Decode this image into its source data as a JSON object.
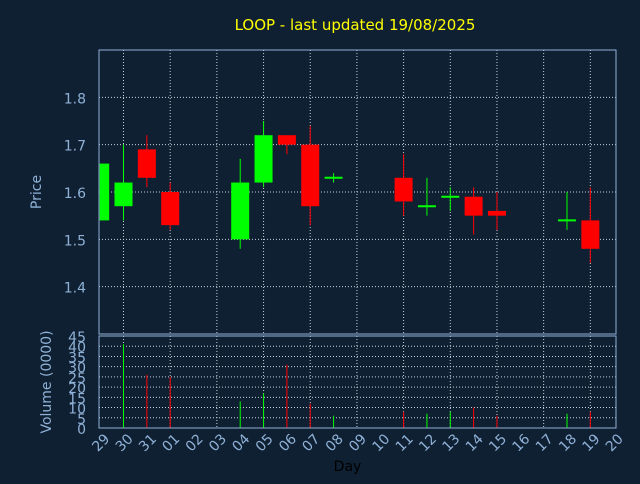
{
  "chart_data": {
    "type": "candlestick",
    "title": "LOOP - last updated 19/08/2025",
    "price_panel": {
      "ylabel": "Price",
      "ylim": [
        1.3,
        1.9
      ],
      "yticks": [
        1.4,
        1.5,
        1.6,
        1.7,
        1.8
      ],
      "ytick_labels": [
        "1.4",
        "1.5",
        "1.6",
        "1.7",
        "1.8"
      ],
      "grid": true
    },
    "volume_panel": {
      "ylabel": "Volume (0000)",
      "ylim": [
        0,
        45
      ],
      "yticks": [
        0,
        5,
        10,
        15,
        20,
        25,
        30,
        35,
        40,
        45
      ],
      "ytick_labels": [
        "0",
        "5",
        "10",
        "15",
        "20",
        "25",
        "30",
        "35",
        "40",
        "45"
      ],
      "grid": true
    },
    "xlabel": "Day",
    "x_labels": [
      "29",
      "30",
      "31",
      "01",
      "02",
      "03",
      "04",
      "05",
      "06",
      "07",
      "08",
      "09",
      "10",
      "11",
      "12",
      "13",
      "14",
      "15",
      "16",
      "17",
      "18",
      "19",
      "20"
    ],
    "candles": [
      {
        "day": "29",
        "open": 1.54,
        "high": 1.66,
        "low": 1.54,
        "close": 1.66,
        "volume": 0
      },
      {
        "day": "30",
        "open": 1.57,
        "high": 1.7,
        "low": 1.54,
        "close": 1.62,
        "volume": 41
      },
      {
        "day": "31",
        "open": 1.69,
        "high": 1.72,
        "low": 1.61,
        "close": 1.63,
        "volume": 26
      },
      {
        "day": "01",
        "open": 1.6,
        "high": 1.62,
        "low": 1.52,
        "close": 1.53,
        "volume": 25
      },
      {
        "day": "04",
        "open": 1.5,
        "high": 1.67,
        "low": 1.48,
        "close": 1.62,
        "volume": 13
      },
      {
        "day": "05",
        "open": 1.62,
        "high": 1.75,
        "low": 1.61,
        "close": 1.72,
        "volume": 17
      },
      {
        "day": "06",
        "open": 1.72,
        "high": 1.72,
        "low": 1.68,
        "close": 1.7,
        "volume": 31
      },
      {
        "day": "07",
        "open": 1.7,
        "high": 1.74,
        "low": 1.53,
        "close": 1.57,
        "volume": 12
      },
      {
        "day": "08",
        "open": 1.63,
        "high": 1.64,
        "low": 1.62,
        "close": 1.63,
        "volume": 6
      },
      {
        "day": "11",
        "open": 1.63,
        "high": 1.68,
        "low": 1.55,
        "close": 1.58,
        "volume": 8
      },
      {
        "day": "12",
        "open": 1.57,
        "high": 1.63,
        "low": 1.55,
        "close": 1.57,
        "volume": 7
      },
      {
        "day": "13",
        "open": 1.59,
        "high": 1.61,
        "low": 1.56,
        "close": 1.59,
        "volume": 8
      },
      {
        "day": "14",
        "open": 1.59,
        "high": 1.61,
        "low": 1.51,
        "close": 1.55,
        "volume": 10
      },
      {
        "day": "15",
        "open": 1.56,
        "high": 1.6,
        "low": 1.52,
        "close": 1.55,
        "volume": 6
      },
      {
        "day": "18",
        "open": 1.54,
        "high": 1.6,
        "low": 1.52,
        "close": 1.54,
        "volume": 7
      },
      {
        "day": "19",
        "open": 1.54,
        "high": 1.61,
        "low": 1.45,
        "close": 1.48,
        "volume": 8
      }
    ],
    "colors": {
      "background": "#102033",
      "title": "#ffff00",
      "axis_text": "#8fb1d6",
      "grid": "#c8d2dc",
      "frame": "#8fb1d6",
      "up": "#00ff00",
      "down": "#ff0000"
    }
  }
}
